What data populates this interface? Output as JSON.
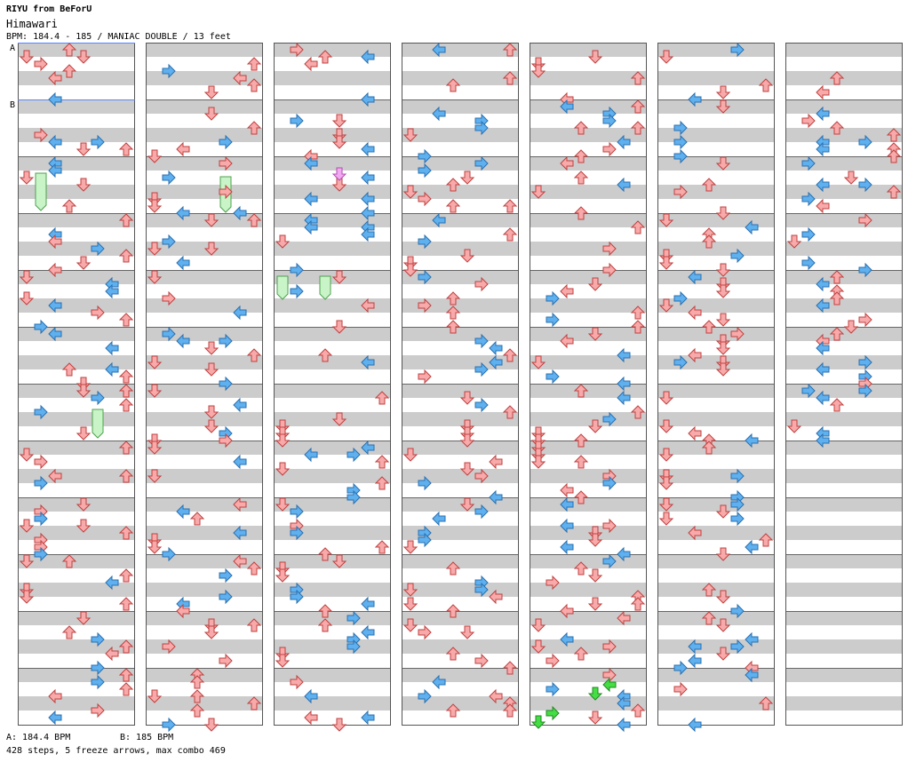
{
  "header": {
    "artist_line": "RIYU from BeForU",
    "song_title": "Himawari",
    "info_line": "BPM: 184.4 - 185 / MANIAC DOUBLE / 13 feet"
  },
  "chart": {
    "columns": 7,
    "measures_per_column": 12,
    "bpm_markers": [
      {
        "label": "A",
        "measure": 0
      },
      {
        "label": "B",
        "measure": 1
      }
    ],
    "colors": {
      "band_gray": "#cccccc",
      "band_white": "#ffffff",
      "red_arrow": "#f8aaaa",
      "blue_arrow": "#5fb0ef",
      "pink_arrow": "#f3a8f3",
      "green_arrow": "#44dd44",
      "freeze": "#c8f4c8",
      "bpm_line": "#5588ff"
    },
    "arrow_types": [
      "red",
      "blue",
      "pink",
      "green"
    ],
    "freeze_count": 5
  },
  "footer": {
    "bpm_a": "A: 184.4 BPM",
    "bpm_b": "B: 185 BPM",
    "stats": "428 steps, 5 freeze arrows, max combo 469"
  }
}
